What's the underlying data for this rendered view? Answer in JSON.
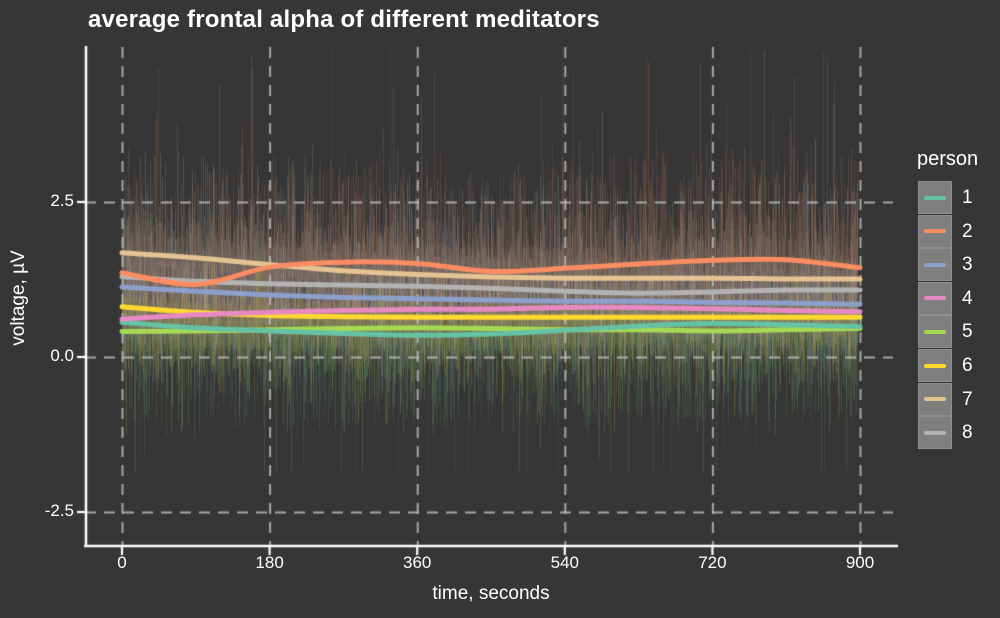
{
  "chart_data": {
    "type": "line",
    "title": "average frontal alpha of different meditators",
    "xlabel": "time, seconds",
    "ylabel": "voltage, µV",
    "legend_title": "person",
    "legend_position": "right",
    "grid": "dashed-gray",
    "xlim": [
      0,
      900
    ],
    "ylim": [
      -3.1,
      5.0
    ],
    "x_tick_labels": [
      "0",
      "180",
      "360",
      "540",
      "720",
      "900"
    ],
    "x_tick_values": [
      0,
      180,
      360,
      540,
      720,
      900
    ],
    "y_tick_labels": [
      "2.5",
      "0.0",
      "-2.5"
    ],
    "y_tick_values": [
      2.5,
      0.0,
      -2.5
    ],
    "x": [
      0,
      90,
      180,
      270,
      360,
      450,
      540,
      630,
      720,
      810,
      900
    ],
    "series": [
      {
        "name": "1",
        "color": "#66c2a5",
        "values": [
          0.56,
          0.47,
          0.42,
          0.38,
          0.35,
          0.37,
          0.43,
          0.5,
          0.54,
          0.52,
          0.49
        ],
        "raw_band_up_uv": 0.7,
        "raw_band_down_uv": 1.2,
        "raw_spike_up_uv": 0.9,
        "raw_spike_down_uv": 2.3
      },
      {
        "name": "2",
        "color": "#fc8d62",
        "values": [
          1.36,
          1.17,
          1.45,
          1.53,
          1.51,
          1.38,
          1.43,
          1.5,
          1.56,
          1.57,
          1.44
        ],
        "raw_band_up_uv": 1.35,
        "raw_band_down_uv": 0.9,
        "raw_spike_up_uv": 3.1,
        "raw_spike_down_uv": 1.4
      },
      {
        "name": "3",
        "color": "#8da0cb",
        "values": [
          1.13,
          1.06,
          1.0,
          0.96,
          0.94,
          0.92,
          0.9,
          0.9,
          0.88,
          0.87,
          0.85
        ],
        "raw_band_up_uv": 0.9,
        "raw_band_down_uv": 0.95,
        "raw_spike_up_uv": 1.9,
        "raw_spike_down_uv": 1.4
      },
      {
        "name": "4",
        "color": "#e78ac3",
        "values": [
          0.61,
          0.68,
          0.72,
          0.75,
          0.77,
          0.77,
          0.8,
          0.8,
          0.78,
          0.75,
          0.73
        ],
        "raw_band_up_uv": 0.7,
        "raw_band_down_uv": 0.7,
        "raw_spike_up_uv": 1.1,
        "raw_spike_down_uv": 1.1
      },
      {
        "name": "5",
        "color": "#a6d854",
        "values": [
          0.41,
          0.42,
          0.44,
          0.46,
          0.47,
          0.46,
          0.44,
          0.44,
          0.42,
          0.44,
          0.46
        ],
        "raw_band_up_uv": 0.65,
        "raw_band_down_uv": 1.25,
        "raw_spike_up_uv": 0.9,
        "raw_spike_down_uv": 2.4
      },
      {
        "name": "6",
        "color": "#ffd92f",
        "values": [
          0.81,
          0.72,
          0.67,
          0.65,
          0.64,
          0.64,
          0.64,
          0.64,
          0.64,
          0.64,
          0.64
        ],
        "raw_band_up_uv": 0.65,
        "raw_band_down_uv": 0.8,
        "raw_spike_up_uv": 1.0,
        "raw_spike_down_uv": 1.2
      },
      {
        "name": "7",
        "color": "#e5c494",
        "values": [
          1.68,
          1.6,
          1.49,
          1.39,
          1.33,
          1.29,
          1.27,
          1.27,
          1.27,
          1.26,
          1.26
        ],
        "raw_band_up_uv": 1.3,
        "raw_band_down_uv": 0.8,
        "raw_spike_up_uv": 3.0,
        "raw_spike_down_uv": 1.3
      },
      {
        "name": "8",
        "color": "#b3b3b3",
        "values": [
          1.3,
          1.22,
          1.18,
          1.16,
          1.14,
          1.11,
          1.06,
          1.03,
          1.05,
          1.08,
          1.08
        ],
        "raw_band_up_uv": 1.35,
        "raw_band_down_uv": 0.9,
        "raw_spike_up_uv": 3.1,
        "raw_spike_down_uv": 1.5
      }
    ]
  },
  "theme": {
    "background": "#363636",
    "axis_color": "#ffffff",
    "grid_color": "#bebebe",
    "text_color": "#ffffff",
    "legend_key_fill": "#7f7f7f",
    "legend_key_border": "#8f8f8f"
  }
}
